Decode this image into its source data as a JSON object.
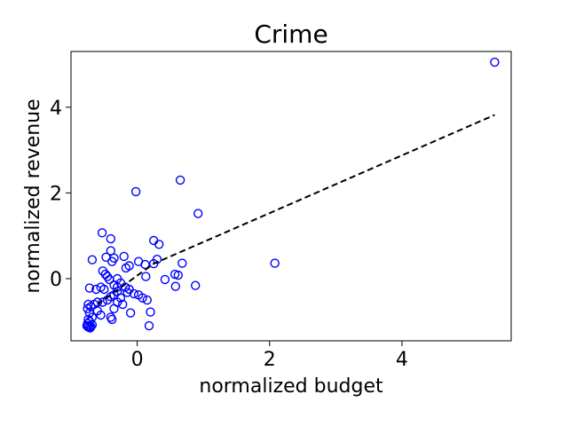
{
  "chart_data": {
    "type": "scatter",
    "title": "Crime",
    "xlabel": "normalized budget",
    "ylabel": "normalized revenue",
    "xlim": [
      -1.0,
      5.65
    ],
    "ylim": [
      -1.45,
      5.3
    ],
    "xticks": [
      0,
      2,
      4
    ],
    "yticks": [
      0,
      2,
      4
    ],
    "grid": false,
    "marker": "open-circle",
    "marker_color": "#0000ff",
    "trend_color": "#000000",
    "trend_style": "dashed",
    "trend_line": [
      [
        -0.6,
        -0.6
      ],
      [
        0.25,
        0.35
      ],
      [
        5.4,
        3.82
      ]
    ],
    "points": [
      [
        5.4,
        5.05
      ],
      [
        0.65,
        2.3
      ],
      [
        -0.02,
        2.03
      ],
      [
        0.92,
        1.52
      ],
      [
        2.08,
        0.36
      ],
      [
        -0.53,
        1.07
      ],
      [
        -0.4,
        0.93
      ],
      [
        0.25,
        0.89
      ],
      [
        0.33,
        0.8
      ],
      [
        -0.4,
        0.65
      ],
      [
        -0.47,
        0.5
      ],
      [
        -0.68,
        0.44
      ],
      [
        -0.35,
        0.48
      ],
      [
        -0.2,
        0.52
      ],
      [
        -0.38,
        0.4
      ],
      [
        -0.12,
        0.3
      ],
      [
        -0.17,
        0.25
      ],
      [
        0.02,
        0.4
      ],
      [
        0.12,
        0.33
      ],
      [
        0.25,
        0.35
      ],
      [
        0.3,
        0.45
      ],
      [
        0.68,
        0.36
      ],
      [
        0.13,
        0.05
      ],
      [
        0.42,
        -0.02
      ],
      [
        0.57,
        0.1
      ],
      [
        0.62,
        0.08
      ],
      [
        0.58,
        -0.18
      ],
      [
        0.88,
        -0.16
      ],
      [
        -0.52,
        0.18
      ],
      [
        -0.48,
        0.1
      ],
      [
        -0.45,
        0.05
      ],
      [
        -0.42,
        -0.02
      ],
      [
        -0.3,
        0.0
      ],
      [
        -0.25,
        -0.1
      ],
      [
        -0.35,
        -0.15
      ],
      [
        -0.55,
        -0.2
      ],
      [
        -0.5,
        -0.25
      ],
      [
        -0.62,
        -0.25
      ],
      [
        -0.72,
        -0.22
      ],
      [
        -0.3,
        -0.2
      ],
      [
        -0.18,
        -0.2
      ],
      [
        -0.12,
        -0.25
      ],
      [
        -0.15,
        -0.32
      ],
      [
        -0.05,
        -0.35
      ],
      [
        0.02,
        -0.38
      ],
      [
        0.08,
        -0.45
      ],
      [
        0.15,
        -0.5
      ],
      [
        -0.3,
        -0.3
      ],
      [
        -0.35,
        -0.38
      ],
      [
        -0.4,
        -0.42
      ],
      [
        -0.25,
        -0.45
      ],
      [
        -0.45,
        -0.5
      ],
      [
        -0.3,
        -0.55
      ],
      [
        -0.22,
        -0.6
      ],
      [
        -0.52,
        -0.55
      ],
      [
        -0.6,
        -0.55
      ],
      [
        -0.65,
        -0.6
      ],
      [
        -0.7,
        -0.65
      ],
      [
        -0.74,
        -0.6
      ],
      [
        -0.75,
        -0.7
      ],
      [
        -0.6,
        -0.75
      ],
      [
        -0.55,
        -0.85
      ],
      [
        -0.72,
        -0.8
      ],
      [
        -0.68,
        -0.9
      ],
      [
        -0.35,
        -0.7
      ],
      [
        -0.4,
        -0.9
      ],
      [
        -0.38,
        -0.95
      ],
      [
        -0.1,
        -0.8
      ],
      [
        0.2,
        -0.78
      ],
      [
        0.18,
        -1.1
      ],
      [
        -0.74,
        -0.95
      ],
      [
        -0.72,
        -1.0
      ],
      [
        -0.75,
        -1.05
      ],
      [
        -0.73,
        -1.1
      ],
      [
        -0.7,
        -1.12
      ],
      [
        -0.68,
        -1.08
      ],
      [
        -0.74,
        -1.13
      ],
      [
        -0.71,
        -1.15
      ],
      [
        -0.76,
        -1.1
      ]
    ]
  }
}
